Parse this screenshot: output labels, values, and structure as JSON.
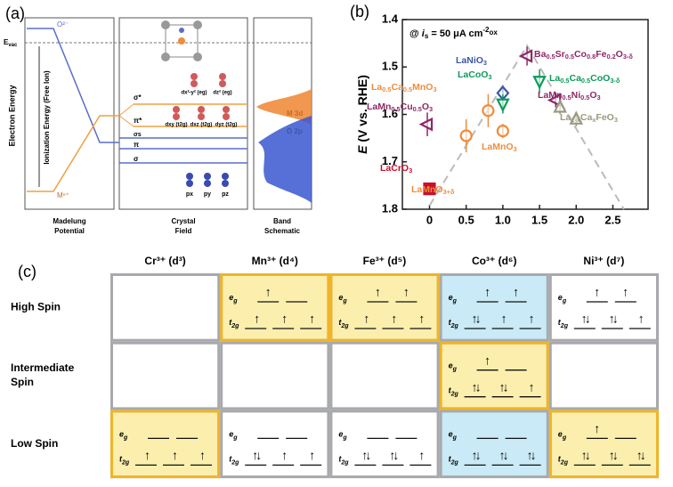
{
  "panel_a": {
    "label": "(a)",
    "e_vac": [
      "E",
      "vac"
    ],
    "o_level": "O²⁻",
    "m_level": "Mⁿ⁺",
    "y_label": "Electron Energy",
    "ionization": "Ionization Energy (Free Ion)",
    "columns": [
      [
        "Madelung",
        "Potential"
      ],
      [
        "Crystal",
        "Field"
      ],
      [
        "Band",
        "Schematic"
      ]
    ],
    "sigma_star": "σ*",
    "pi_star": "π*",
    "sigma_s": "σs",
    "pi": "π",
    "sigma": "σ",
    "eg_orbitals": [
      "dx²-y² (eg)",
      "dz² (eg)"
    ],
    "t2g_orbitals": [
      "dxy (t2g)",
      "dxz (t2g)",
      "dyz (t2g)"
    ],
    "p_orbitals": [
      "px",
      "py",
      "pz"
    ],
    "band_labels": [
      "M 3d",
      "O 2p"
    ]
  },
  "chart_data": {
    "type": "scatter",
    "label": "(b)",
    "y_label": "E (V vs. RHE)",
    "annotation": [
      "@ ",
      "i",
      "s",
      " = 50 μA cm",
      "-2",
      "ox"
    ],
    "xlim": [
      -0.37,
      2.98
    ],
    "xticks": [
      0,
      0.5,
      {
        "value": 1,
        "label": "1.0"
      },
      1.5,
      {
        "value": 2,
        "label": "2.0"
      },
      2.5
    ],
    "ylim": [
      1.4,
      1.8
    ],
    "y_inverted": true,
    "yticks": [
      1.4,
      1.5,
      1.6,
      1.7,
      1.8
    ],
    "series": [
      {
        "name": "LaCrO3",
        "color": "#c8102e",
        "marker": "square",
        "x": [
          0
        ],
        "values": [
          1.757
        ],
        "errors": [
          0.01
        ]
      },
      {
        "name": "LaMnO3+δ",
        "color": "#f08c3c",
        "marker": "circle",
        "x": [
          0.5
        ],
        "values": [
          1.645
        ],
        "errors": [
          0.035
        ]
      },
      {
        "name": "La0.5Ca0.5MnO3",
        "color": "#f08c3c",
        "marker": "circle",
        "x": [
          0.8
        ],
        "values": [
          1.592
        ],
        "errors": [
          0.035
        ]
      },
      {
        "name": "LaMnO3",
        "color": "#f08c3c",
        "marker": "circle",
        "x": [
          1.0
        ],
        "values": [
          1.635
        ],
        "errors": [
          0.015
        ]
      },
      {
        "name": "LaNiO3",
        "color": "#3a57a7",
        "marker": "diamond",
        "x": [
          1.0
        ],
        "values": [
          1.555
        ],
        "errors": [
          0.015
        ]
      },
      {
        "name": "LaCoO3",
        "color": "#0c9a5a",
        "marker": "triangle-down",
        "x": [
          1.0
        ],
        "values": [
          1.578
        ],
        "errors": [
          0.02
        ]
      },
      {
        "name": "LaMn0.5Cu0.5O3",
        "color": "#8e2867",
        "marker": "triangle-left",
        "x": [
          -0.03
        ],
        "values": [
          1.621
        ],
        "errors": [
          0.025
        ]
      },
      {
        "name": "Ba0.5Sr0.5Co0.8Fe0.2O3-δ",
        "color": "#8e2867",
        "marker": "triangle-left",
        "x": [
          1.33
        ],
        "values": [
          1.477
        ],
        "errors": [
          0.02
        ]
      },
      {
        "name": "La0.5Ca0.5CoO3-δ",
        "color": "#0c9a5a",
        "marker": "triangle-down",
        "x": [
          1.5
        ],
        "values": [
          1.53
        ],
        "errors": [
          0.025
        ]
      },
      {
        "name": "LaMn0.5Ni0.5O3",
        "color": "#8e2867",
        "marker": "triangle-left",
        "x": [
          1.72
        ],
        "values": [
          1.57
        ],
        "errors": [
          0.015
        ]
      },
      {
        "name": "La1-xCaxFeO3",
        "color": "#9a9a80",
        "marker": "triangle-up",
        "x": [
          1.78,
          2.0
        ],
        "values": [
          1.585,
          1.61
        ],
        "errors": [
          0.015,
          0.015
        ]
      }
    ]
  },
  "panel_c": {
    "label": "(c)",
    "eg_label": [
      "e",
      "g"
    ],
    "t2g_label": [
      "t",
      "2g"
    ],
    "columns": [
      "Cr³⁺ (d³)",
      "Mn³⁺ (d⁴)",
      "Fe³⁺ (d⁵)",
      "Co³⁺ (d⁶)",
      "Ni³⁺ (d⁷)"
    ],
    "rows": [
      {
        "label": [
          "High Spin"
        ],
        "cells": [
          null,
          {
            "highlight": "yellow",
            "eg": [
              "↑",
              null
            ],
            "t2g": [
              "↑",
              "↑",
              "↑"
            ]
          },
          {
            "highlight": "yellow",
            "eg": [
              "↑",
              "↑"
            ],
            "t2g": [
              "↑",
              "↑",
              "↑"
            ]
          },
          {
            "highlight": "blue",
            "eg": [
              "↑",
              "↑"
            ],
            "t2g": [
              "↑↓",
              "↑",
              "↑"
            ]
          },
          {
            "highlight": null,
            "eg": [
              "↑",
              "↑"
            ],
            "t2g": [
              "↑↓",
              "↑↓",
              "↑"
            ]
          }
        ]
      },
      {
        "label": [
          "Intermediate",
          "Spin"
        ],
        "cells": [
          null,
          null,
          null,
          {
            "highlight": "yellow",
            "eg": [
              "↑",
              null
            ],
            "t2g": [
              "↑↓",
              "↑↓",
              "↑"
            ]
          },
          null
        ]
      },
      {
        "label": [
          "Low Spin"
        ],
        "cells": [
          {
            "highlight": "yellow",
            "eg": [
              null,
              null
            ],
            "t2g": [
              "↑",
              "↑",
              "↑"
            ]
          },
          {
            "highlight": null,
            "eg": [
              null,
              null
            ],
            "t2g": [
              "↑↓",
              "↑",
              "↑"
            ]
          },
          {
            "highlight": null,
            "eg": [
              null,
              null
            ],
            "t2g": [
              "↑↓",
              "↑↓",
              "↑"
            ]
          },
          {
            "highlight": "blue",
            "eg": [
              null,
              null
            ],
            "t2g": [
              "↑↓",
              "↑↓",
              "↑↓"
            ]
          },
          {
            "highlight": "yellow",
            "eg": [
              "↑",
              null
            ],
            "t2g": [
              "↑↓",
              "↑↓",
              "↑↓"
            ]
          }
        ]
      }
    ]
  }
}
